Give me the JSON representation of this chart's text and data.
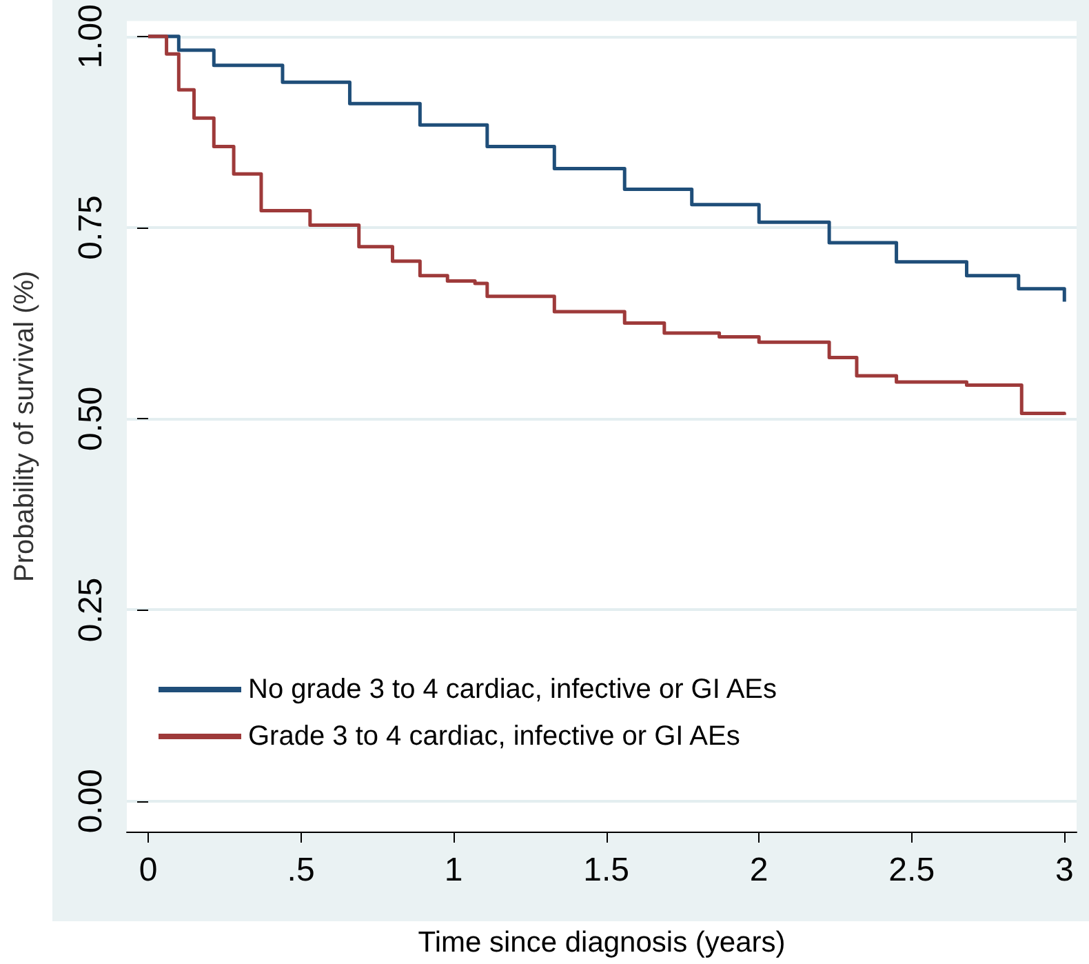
{
  "chart_data": {
    "type": "step",
    "xlabel": "Time since diagnosis (years)",
    "ylabel": "Probability of survival (%)",
    "xlim": [
      -0.07,
      3.04
    ],
    "ylim": [
      -0.04,
      1.02
    ],
    "xticks": [
      {
        "value": 0,
        "label": "0"
      },
      {
        "value": 0.5,
        "label": ".5"
      },
      {
        "value": 1,
        "label": "1"
      },
      {
        "value": 1.5,
        "label": "1.5"
      },
      {
        "value": 2,
        "label": "2"
      },
      {
        "value": 2.5,
        "label": "2.5"
      },
      {
        "value": 3,
        "label": "3"
      }
    ],
    "yticks": [
      {
        "value": 0,
        "label": "0.00"
      },
      {
        "value": 0.25,
        "label": "0.25"
      },
      {
        "value": 0.5,
        "label": "0.50"
      },
      {
        "value": 0.75,
        "label": "0.75"
      },
      {
        "value": 1,
        "label": "1.00"
      }
    ],
    "grid": "y",
    "legend": "bottom left",
    "marker": "none",
    "series": [
      {
        "name": "No grade 3 to 4 cardiac, infective or GI AEs",
        "color": "#1f4e79",
        "x": [
          0,
          0.1,
          0.215,
          0.44,
          0.66,
          0.89,
          1.11,
          1.33,
          1.56,
          1.78,
          2.0,
          2.23,
          2.45,
          2.68,
          2.85,
          3.0
        ],
        "values": [
          1.0,
          0.982,
          0.962,
          0.94,
          0.912,
          0.884,
          0.856,
          0.827,
          0.8,
          0.78,
          0.757,
          0.73,
          0.705,
          0.687,
          0.67,
          0.653
        ]
      },
      {
        "name": "Grade 3 to 4 cardiac, infective or GI AEs",
        "color": "#9e3a3a",
        "x": [
          0,
          0.06,
          0.1,
          0.15,
          0.215,
          0.28,
          0.37,
          0.5,
          0.53,
          0.64,
          0.69,
          0.8,
          0.89,
          0.98,
          1.07,
          1.11,
          1.33,
          1.56,
          1.69,
          1.87,
          2.0,
          2.23,
          2.32,
          2.45,
          2.68,
          2.86,
          3.0
        ],
        "values": [
          1.0,
          0.977,
          0.93,
          0.893,
          0.856,
          0.82,
          0.772,
          0.772,
          0.753,
          0.753,
          0.725,
          0.706,
          0.687,
          0.68,
          0.677,
          0.66,
          0.64,
          0.625,
          0.612,
          0.607,
          0.6,
          0.58,
          0.556,
          0.548,
          0.544,
          0.507,
          0.505
        ]
      }
    ]
  }
}
